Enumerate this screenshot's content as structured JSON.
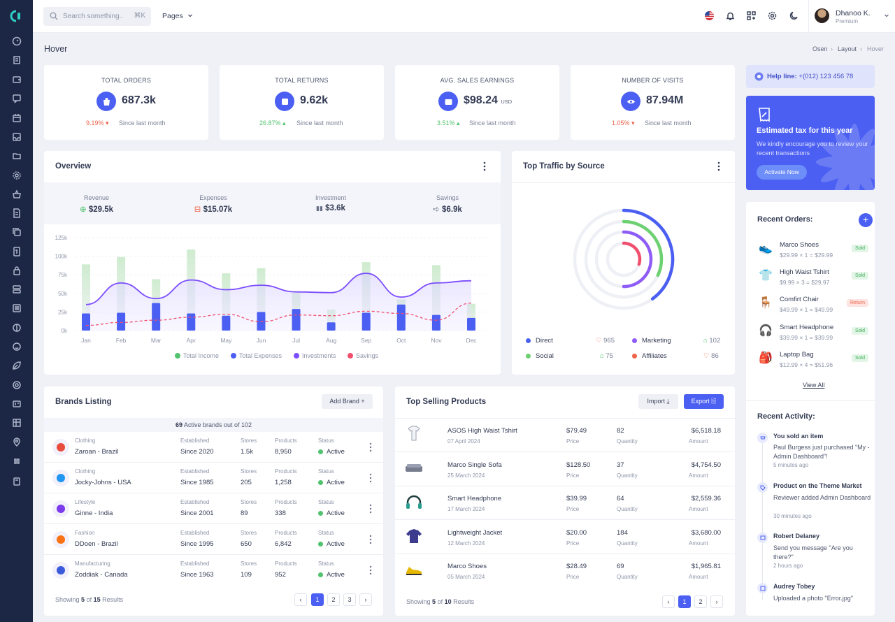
{
  "topbar": {
    "search_placeholder": "Search something..",
    "search_shortcut": "⌘K",
    "pages_label": "Pages",
    "user_name": "Dhanoo K.",
    "user_plan": "Premium"
  },
  "page": {
    "title": "Hover",
    "breadcrumb": [
      "Osen",
      "Layout",
      "Hover"
    ]
  },
  "stats": [
    {
      "label": "TOTAL ORDERS",
      "value": "687.3k",
      "unit": "",
      "change": "9.19%",
      "direction": "down",
      "since": "Since last month",
      "icon": "shopping-bag-icon"
    },
    {
      "label": "TOTAL RETURNS",
      "value": "9.62k",
      "unit": "",
      "change": "26.87%",
      "direction": "up",
      "since": "Since last month",
      "icon": "return-box-icon"
    },
    {
      "label": "AVG. SALES EARNINGS",
      "value": "$98.24",
      "unit": "USD",
      "change": "3.51%",
      "direction": "up",
      "since": "Since last month",
      "icon": "wallet-icon"
    },
    {
      "label": "NUMBER OF VISITS",
      "value": "87.94M",
      "unit": "",
      "change": "1.05%",
      "direction": "down",
      "since": "Since last month",
      "icon": "eye-icon"
    }
  ],
  "overview": {
    "title": "Overview",
    "metrics": [
      {
        "label": "Revenue",
        "value": "$29.5k",
        "icon": "plus-circle-icon",
        "color": "#51c26d"
      },
      {
        "label": "Expenses",
        "value": "$15.07k",
        "icon": "minus-square-icon",
        "color": "#f0644b"
      },
      {
        "label": "Investment",
        "value": "$3.6k",
        "icon": "chart-bars-icon",
        "color": "#6b7188"
      },
      {
        "label": "Savings",
        "value": "$6.9k",
        "icon": "piggy-arrow-icon",
        "color": "#6b7188"
      }
    ]
  },
  "chart_data": {
    "type": "bar",
    "categories": [
      "Jan",
      "Feb",
      "Mar",
      "Apr",
      "May",
      "Jun",
      "Jul",
      "Aug",
      "Sep",
      "Oct",
      "Nov",
      "Dec"
    ],
    "y_ticks": [
      "0k",
      "25k",
      "50k",
      "75k",
      "100k",
      "125k"
    ],
    "ylim": [
      0,
      125
    ],
    "series": [
      {
        "name": "Total Income",
        "kind": "bar",
        "color": "#cfeccf",
        "values": [
          89,
          99,
          69,
          109,
          77,
          84,
          51,
          28,
          92,
          42,
          88,
          36
        ]
      },
      {
        "name": "Total Expenses",
        "kind": "bar",
        "color": "#4b5ff2",
        "values": [
          23,
          24,
          37,
          23,
          20,
          25,
          29,
          11,
          24,
          35,
          21,
          17
        ]
      },
      {
        "name": "Investments",
        "kind": "area",
        "color": "#7c4dff",
        "values": [
          35,
          64,
          43,
          68,
          55,
          61,
          52,
          51,
          77,
          45,
          64,
          67
        ]
      },
      {
        "name": "Savings",
        "kind": "line",
        "color": "#f0506e",
        "values": [
          7,
          11,
          14,
          18,
          22,
          12,
          21,
          20,
          26,
          23,
          14,
          37
        ]
      }
    ]
  },
  "traffic": {
    "title": "Top Traffic by Source",
    "rings": [
      {
        "name": "Direct",
        "color": "#4b5ff2",
        "fraction": 0.4
      },
      {
        "name": "Social",
        "color": "#6dd171",
        "fraction": 0.32
      },
      {
        "name": "Marketing",
        "color": "#8e5cf6",
        "fraction": 0.5
      },
      {
        "name": "Affiliates",
        "color": "#f0506e",
        "fraction": 0.3
      }
    ],
    "legend": [
      {
        "name": "Direct",
        "value": "965",
        "color": "#4b5ff2",
        "trend": "down"
      },
      {
        "name": "Marketing",
        "value": "102",
        "color": "#8e5cf6",
        "trend": "up"
      },
      {
        "name": "Social",
        "value": "75",
        "color": "#6dd171",
        "trend": "up"
      },
      {
        "name": "Affiliates",
        "value": "86",
        "color": "#f0644b",
        "trend": "down"
      }
    ]
  },
  "help": {
    "label": "Help line:",
    "phone": "+(012) 123 456 78"
  },
  "tax": {
    "title": "Estimated tax for this year",
    "text": "We kindly encourage you to review your recent transactions",
    "button": "Activate Now"
  },
  "recent_orders": {
    "title": "Recent Orders:",
    "view_all": "View All",
    "items": [
      {
        "name": "Marco Shoes",
        "price": "$29.99 × 1 = $29.99",
        "status": "Sold",
        "icon": "shoe-icon"
      },
      {
        "name": "High Waist Tshirt",
        "price": "$9.99 × 3 = $29.97",
        "status": "Sold",
        "icon": "tshirt-icon"
      },
      {
        "name": "Comfirt Chair",
        "price": "$49.99 × 1 = $49.99",
        "status": "Return",
        "icon": "chair-icon"
      },
      {
        "name": "Smart Headphone",
        "price": "$39.99 × 1 = $39.99",
        "status": "Sold",
        "icon": "headphone-icon"
      },
      {
        "name": "Laptop Bag",
        "price": "$12.99 × 4 = $51.96",
        "status": "Sold",
        "icon": "bag-icon"
      }
    ]
  },
  "recent_activity": {
    "title": "Recent Activity:",
    "items": [
      {
        "title": "You sold an item",
        "desc": "Paul Burgess just purchased “My - Admin Dashboard”!",
        "time": "5 minutes ago",
        "icon": "cart-icon"
      },
      {
        "title": "Product on the Theme Market",
        "desc": "Reviewer added Admin Dashboard",
        "time": "30 minutes ago",
        "icon": "tag-icon"
      },
      {
        "title": "Robert Delaney",
        "desc": "Send you message \"Are you there?\"",
        "time": "2 hours ago",
        "icon": "message-icon"
      },
      {
        "title": "Audrey Tobey",
        "desc": "Uploaded a photo \"Error.jpg\"",
        "time": "",
        "icon": "image-icon"
      }
    ]
  },
  "brands": {
    "title": "Brands Listing",
    "add_button": "Add Brand",
    "summary_count": "69",
    "summary_text": "Active brands out of 102",
    "col_established": "Established",
    "col_stores": "Stores",
    "col_products": "Products",
    "col_status": "Status",
    "rows": [
      {
        "category": "Clothing",
        "name": "Zaroan - Brazil",
        "established": "Since 2020",
        "stores": "1.5k",
        "products": "8,950",
        "status": "Active",
        "logo_color": "#e84c3d"
      },
      {
        "category": "Clothing",
        "name": "Jocky-Johns - USA",
        "established": "Since 1985",
        "stores": "205",
        "products": "1,258",
        "status": "Active",
        "logo_color": "#2196f3"
      },
      {
        "category": "Lifestyle",
        "name": "Ginne - India",
        "established": "Since 2001",
        "stores": "89",
        "products": "338",
        "status": "Active",
        "logo_color": "#7c3aed"
      },
      {
        "category": "Fashion",
        "name": "DDoen - Brazil",
        "established": "Since 1995",
        "stores": "650",
        "products": "6,842",
        "status": "Active",
        "logo_color": "#f97316"
      },
      {
        "category": "Manufacturing",
        "name": "Zoddiak - Canada",
        "established": "Since 1963",
        "stores": "109",
        "products": "952",
        "status": "Active",
        "logo_color": "#3b5bdb"
      }
    ],
    "footer_prefix": "Showing",
    "footer_shown": "5",
    "footer_mid": "of",
    "footer_total": "15",
    "footer_suffix": "Results",
    "pages": [
      "1",
      "2",
      "3"
    ]
  },
  "top_products": {
    "title": "Top Selling Products",
    "import_button": "Import",
    "export_button": "Export",
    "col_price": "Price",
    "col_quantity": "Quantity",
    "col_amount": "Amount",
    "rows": [
      {
        "name": "ASOS High Waist Tshirt",
        "date": "07 April 2024",
        "price": "$79.49",
        "quantity": "82",
        "amount": "$6,518.18",
        "icon": "tshirt-icon"
      },
      {
        "name": "Marco Single Sofa",
        "date": "25 March 2024",
        "price": "$128.50",
        "quantity": "37",
        "amount": "$4,754.50",
        "icon": "sofa-icon"
      },
      {
        "name": "Smart Headphone",
        "date": "17 March 2024",
        "price": "$39.99",
        "quantity": "64",
        "amount": "$2,559.36",
        "icon": "headphone-icon"
      },
      {
        "name": "Lightweight Jacket",
        "date": "12 March 2024",
        "price": "$20.00",
        "quantity": "184",
        "amount": "$3,680.00",
        "icon": "jacket-icon"
      },
      {
        "name": "Marco Shoes",
        "date": "05 March 2024",
        "price": "$28.49",
        "quantity": "69",
        "amount": "$1,965.81",
        "icon": "shoe-icon"
      }
    ],
    "footer_prefix": "Showing",
    "footer_shown": "5",
    "footer_mid": "of",
    "footer_total": "10",
    "footer_suffix": "Results",
    "pages": [
      "1",
      "2"
    ]
  }
}
